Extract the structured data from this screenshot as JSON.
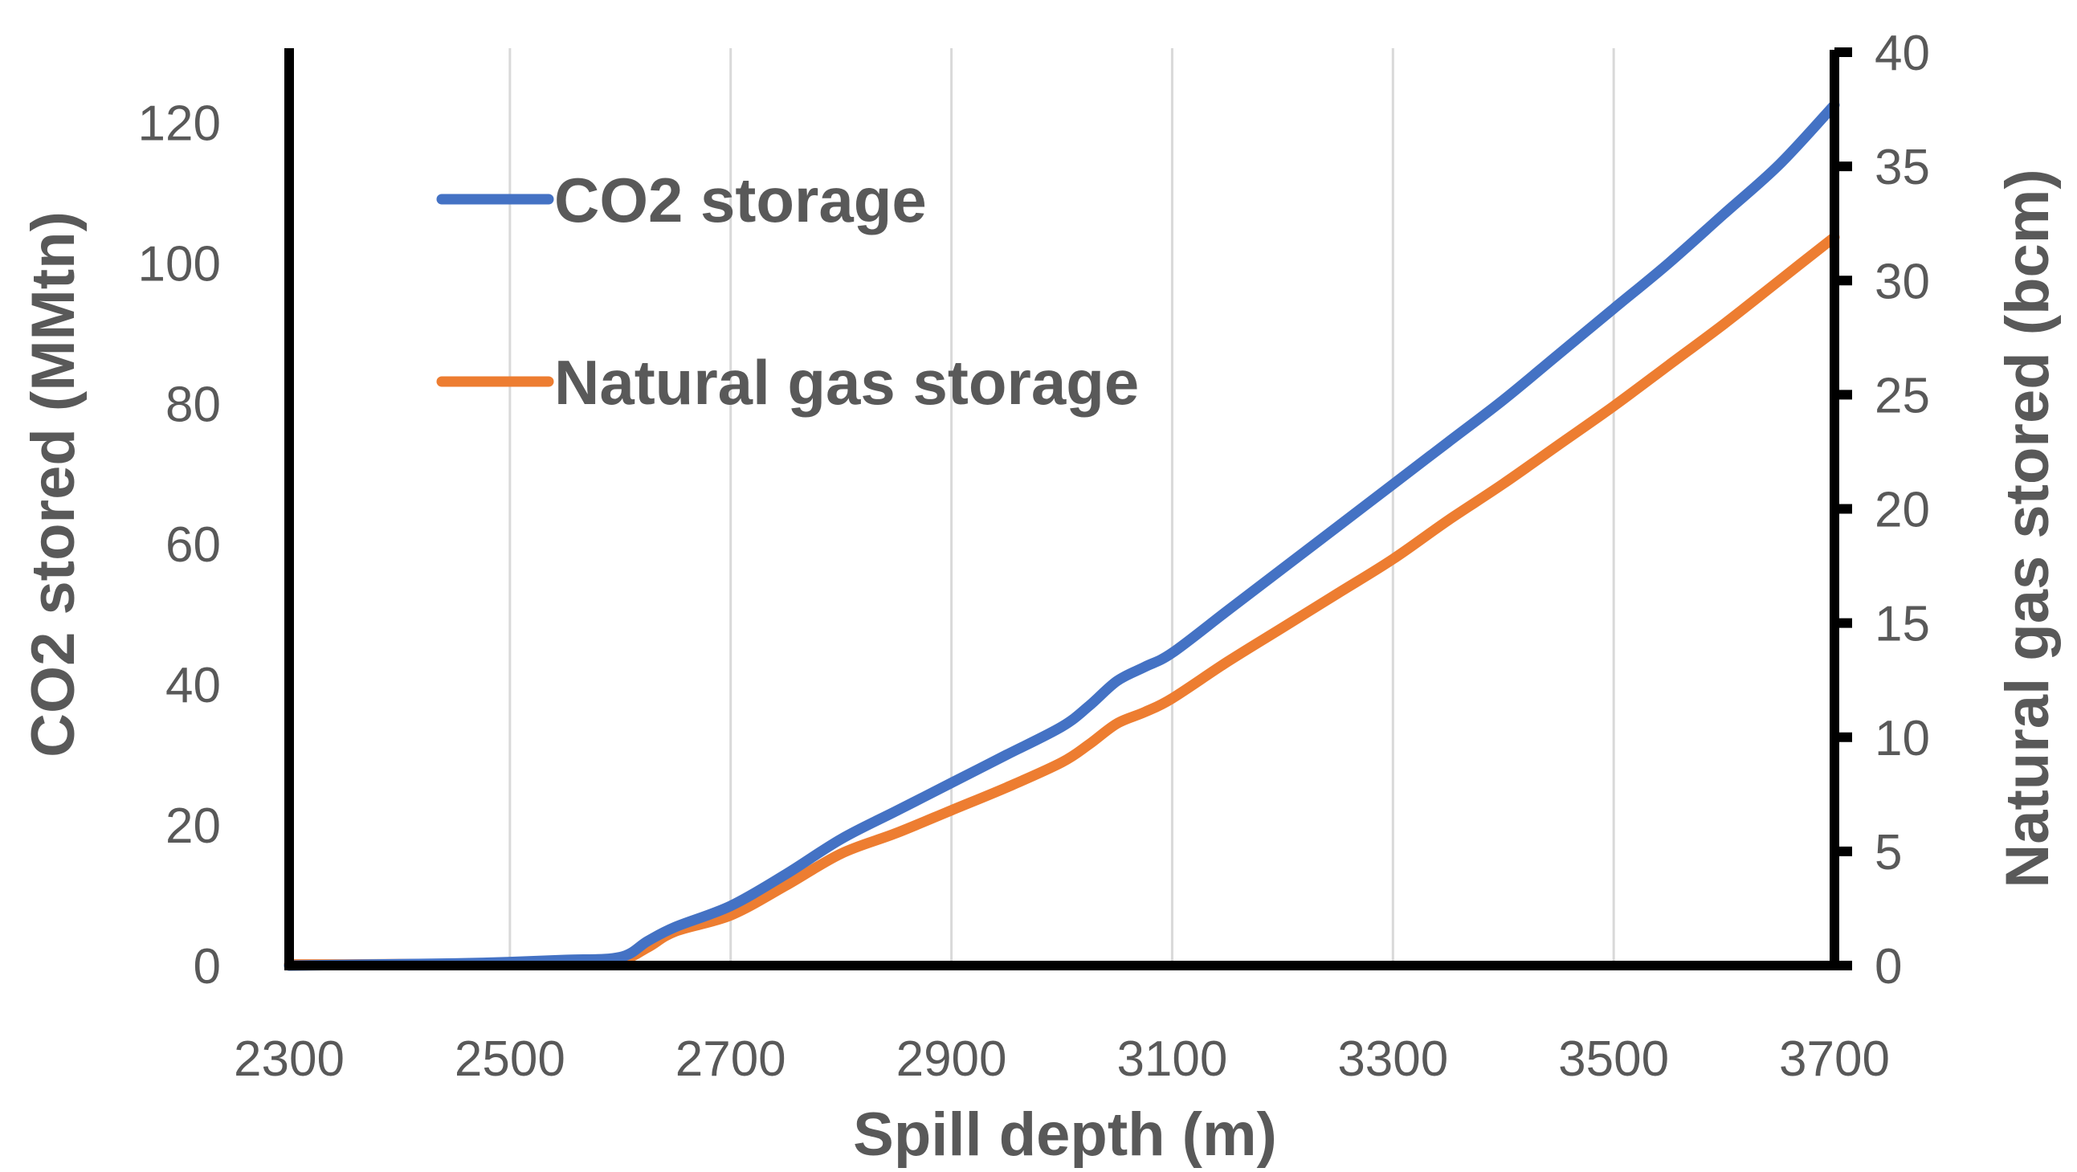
{
  "chart_data": {
    "type": "line",
    "title": "",
    "xlabel": "Spill depth (m)",
    "ylabel": "CO2 stored (MMtn)",
    "y2label": "Natural gas stored (bcm)",
    "xlim": [
      2300,
      3700
    ],
    "ylim": [
      0,
      130
    ],
    "y2lim": [
      0,
      40
    ],
    "xticks": [
      2300,
      2500,
      2700,
      2900,
      3100,
      3300,
      3500,
      3700
    ],
    "yticks": [
      0,
      20,
      40,
      60,
      80,
      100,
      120
    ],
    "y2ticks": [
      0,
      5,
      10,
      15,
      20,
      25,
      30,
      35,
      40
    ],
    "grid": "vertical",
    "legend_position": "top-left",
    "series": [
      {
        "name": "CO2 storage",
        "axis": "left",
        "color": "#4472C4",
        "x": [
          2300,
          2350,
          2400,
          2450,
          2500,
          2550,
          2600,
          2625,
          2650,
          2700,
          2750,
          2800,
          2850,
          2900,
          2950,
          3000,
          3025,
          3050,
          3075,
          3100,
          3150,
          3200,
          3250,
          3300,
          3350,
          3400,
          3450,
          3500,
          3550,
          3600,
          3650,
          3700
        ],
        "y": [
          0,
          0.1,
          0.2,
          0.3,
          0.5,
          0.8,
          1.2,
          3.5,
          5.5,
          8.5,
          13,
          18,
          22,
          26,
          30,
          34,
          37,
          40.5,
          42.5,
          44.5,
          50.5,
          56.5,
          62.5,
          68.5,
          74.5,
          80.5,
          87,
          93.5,
          100,
          107,
          114,
          122.5
        ]
      },
      {
        "name": "Natural gas storage",
        "axis": "right",
        "color": "#ED7D31",
        "x": [
          2300,
          2350,
          2400,
          2450,
          2500,
          2550,
          2600,
          2625,
          2650,
          2700,
          2750,
          2800,
          2850,
          2900,
          2950,
          3000,
          3025,
          3050,
          3075,
          3100,
          3150,
          3200,
          3250,
          3300,
          3350,
          3400,
          3450,
          3500,
          3550,
          3600,
          3650,
          3700
        ],
        "y": [
          0.05,
          0.05,
          0.06,
          0.07,
          0.1,
          0.15,
          0.25,
          0.8,
          1.5,
          2.2,
          3.5,
          4.9,
          5.8,
          6.8,
          7.8,
          8.9,
          9.7,
          10.6,
          11.1,
          11.7,
          13.3,
          14.8,
          16.3,
          17.8,
          19.5,
          21.1,
          22.8,
          24.5,
          26.3,
          28.1,
          30,
          31.9
        ]
      }
    ]
  }
}
